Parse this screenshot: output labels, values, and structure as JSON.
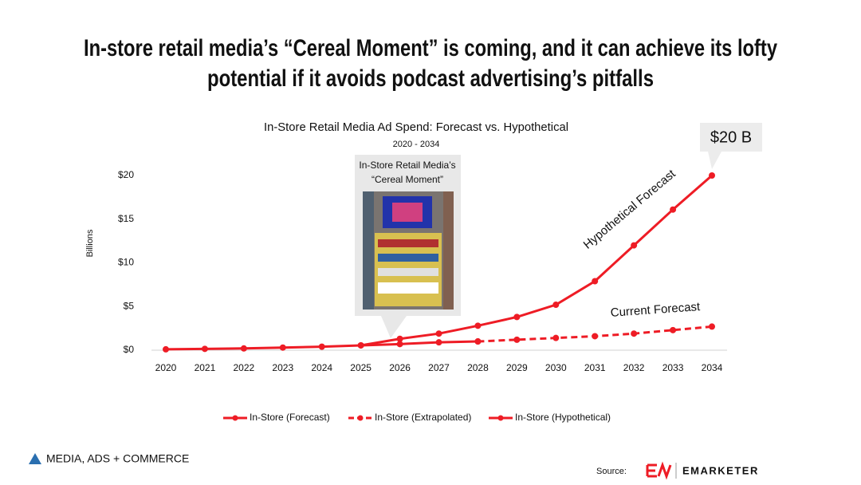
{
  "slide": {
    "headline": [
      "In-store retail media’s “Cereal Moment” is coming, and it can achieve its lofty",
      "potential if it avoids podcast advertising’s pitfalls"
    ],
    "brand": "MEDIA, ADS + COMMERCE",
    "source_label": "Source:",
    "logo": "EMARKETER"
  },
  "chart_data": {
    "type": "line",
    "title": "In-Store Retail Media Ad Spend: Forecast vs. Hypothetical",
    "subtitle": "2020 - 2034",
    "y_label": "Billions",
    "categories": [
      "2020",
      "2021",
      "2022",
      "2023",
      "2024",
      "2025",
      "2026",
      "2027",
      "2028",
      "2029",
      "2030",
      "2031",
      "2032",
      "2033",
      "2034"
    ],
    "series": [
      {
        "name": "In-Store (Forecast)",
        "color": "#ee1c25",
        "style": "solid",
        "values": [
          0.1,
          0.15,
          0.2,
          0.3,
          0.4,
          0.55,
          0.7,
          0.9,
          1.0,
          null,
          null,
          null,
          null,
          null,
          null
        ]
      },
      {
        "name": "In-Store (Extrapolated)",
        "color": "#ee1c25",
        "style": "dashed",
        "values": [
          null,
          null,
          null,
          null,
          null,
          null,
          null,
          null,
          1.0,
          1.2,
          1.4,
          1.6,
          1.9,
          2.3,
          2.7
        ]
      },
      {
        "name": "In-Store (Hypothetical)",
        "color": "#ee1c25",
        "style": "solid",
        "values": [
          null,
          null,
          null,
          null,
          null,
          0.55,
          1.3,
          1.9,
          2.8,
          3.8,
          5.2,
          7.9,
          12.0,
          16.1,
          20.0
        ]
      }
    ],
    "ylim": [
      0,
      20
    ],
    "yticks": [
      {
        "value": 0,
        "label": "$0"
      },
      {
        "value": 5,
        "label": "$5"
      },
      {
        "value": 10,
        "label": "$10"
      },
      {
        "value": 15,
        "label": "$15"
      },
      {
        "value": 20,
        "label": "$20"
      }
    ],
    "grid": false,
    "annotations": {
      "callout": "$20 B",
      "hypothetical": "Hypothetical Forecast",
      "current": "Current Forecast",
      "image_caption": [
        "In-Store Retail Media’s",
        "“Cereal Moment”"
      ]
    }
  }
}
